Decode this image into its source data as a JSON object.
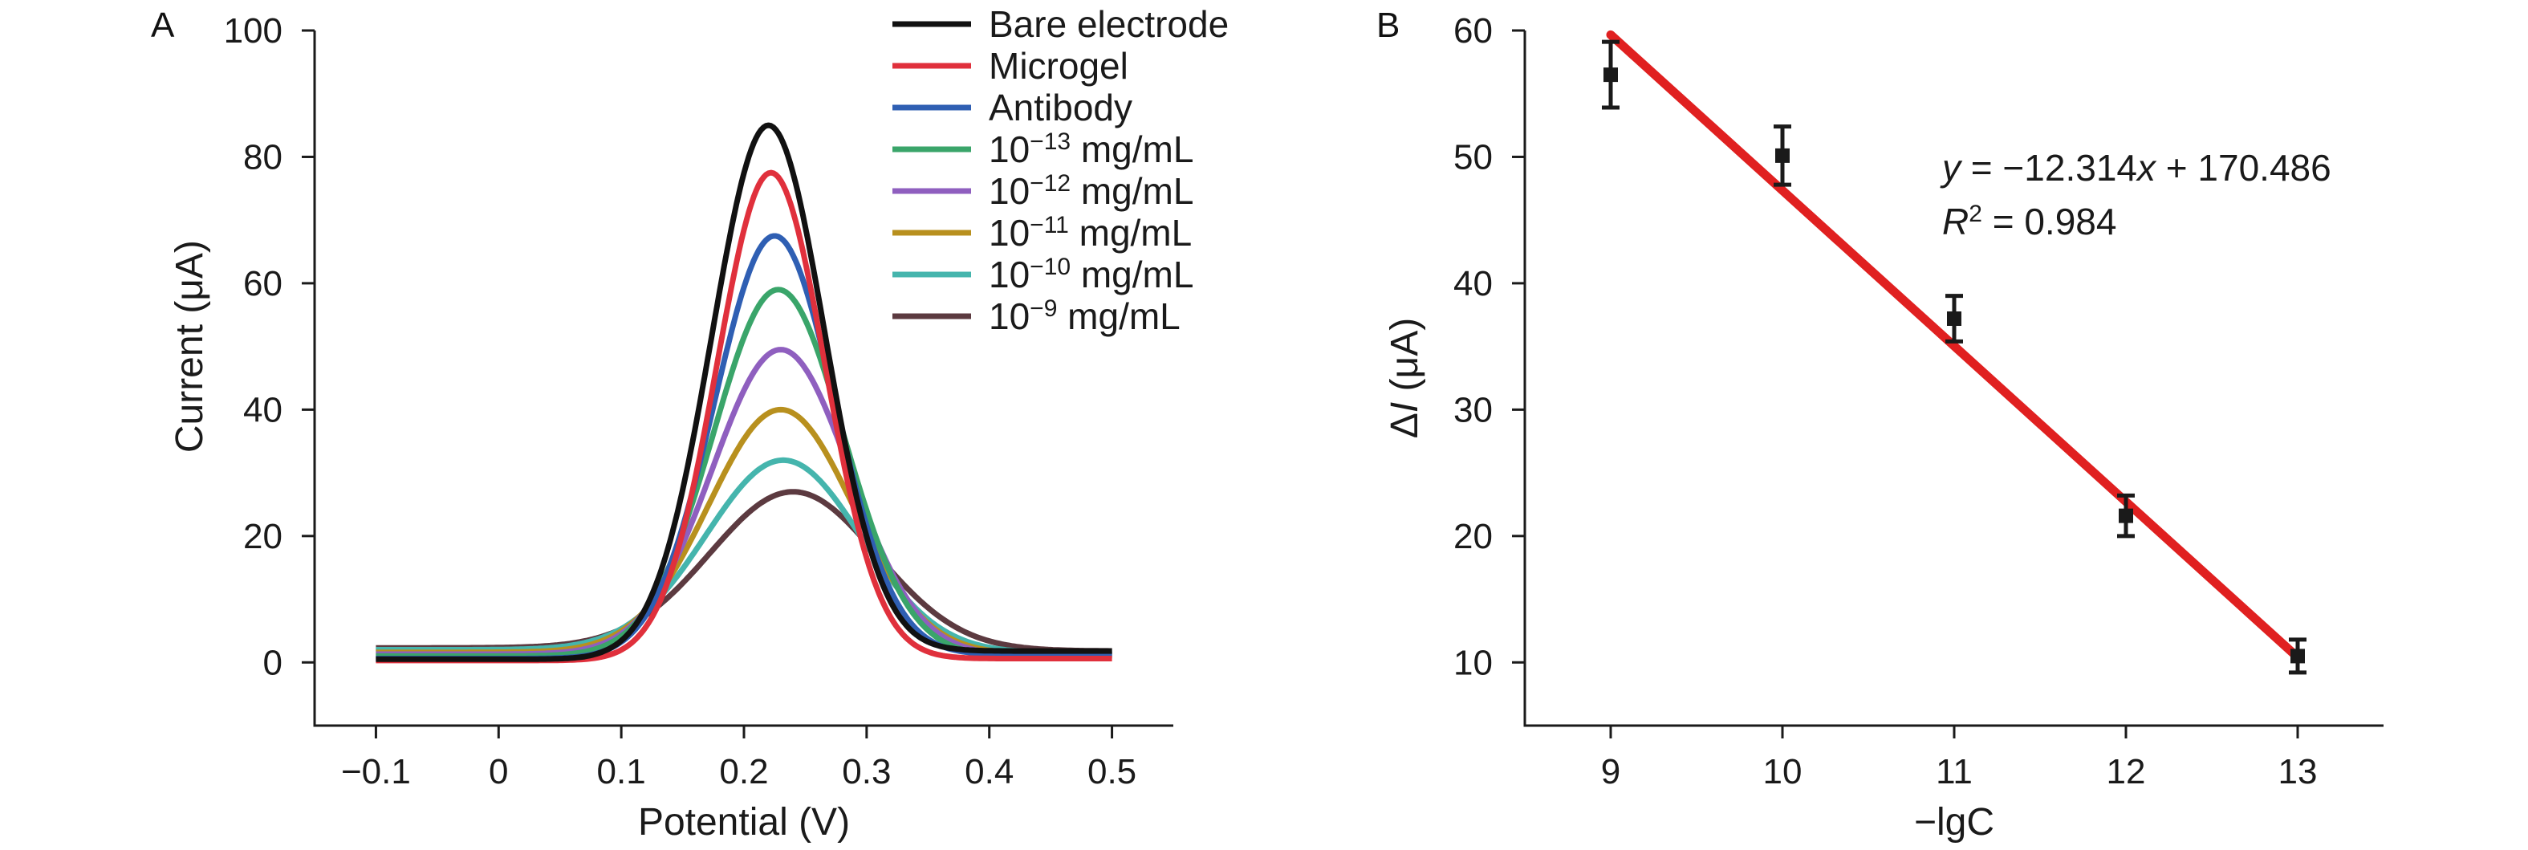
{
  "chart_data": [
    {
      "panel": "A",
      "type": "line",
      "xlabel": "Potential (V)",
      "ylabel": "Current (μA)",
      "xlim": [
        -0.15,
        0.55
      ],
      "ylim": [
        -10,
        100
      ],
      "x_ticks": [
        -0.1,
        0,
        0.1,
        0.2,
        0.3,
        0.4,
        0.5
      ],
      "x_tick_labels": [
        "−0.1",
        "0",
        "0.1",
        "0.2",
        "0.3",
        "0.4",
        "0.5"
      ],
      "y_ticks": [
        0,
        20,
        40,
        60,
        80,
        100
      ],
      "y_tick_labels": [
        "0",
        "20",
        "40",
        "60",
        "80",
        "100"
      ],
      "grid": false,
      "legend_position": "top-right",
      "series": [
        {
          "name": "Bare electrode",
          "base": "",
          "exp": "",
          "unit": "",
          "color": "#111111",
          "peak_x": 0.22,
          "peak_y": 85,
          "width": 0.046,
          "baseline_left": 0.5,
          "baseline_right": 1.8
        },
        {
          "name": "Microgel",
          "base": "",
          "exp": "",
          "unit": "",
          "color": "#e0303c",
          "peak_x": 0.222,
          "peak_y": 77.5,
          "width": 0.044,
          "baseline_left": 0.3,
          "baseline_right": 0.6
        },
        {
          "name": "Antibody",
          "base": "",
          "exp": "",
          "unit": "",
          "color": "#2f5fb3",
          "peak_x": 0.225,
          "peak_y": 67.5,
          "width": 0.049,
          "baseline_left": 0.6,
          "baseline_right": 1.2
        },
        {
          "name": "",
          "base": "10",
          "exp": "−13",
          "unit": " mg/mL",
          "color": "#3aa56a",
          "peak_x": 0.228,
          "peak_y": 59,
          "width": 0.053,
          "baseline_left": 1.0,
          "baseline_right": 1.0
        },
        {
          "name": "",
          "base": "10",
          "exp": "−12",
          "unit": " mg/mL",
          "color": "#8f5fbf",
          "peak_x": 0.23,
          "peak_y": 49.5,
          "width": 0.056,
          "baseline_left": 1.3,
          "baseline_right": 1.1
        },
        {
          "name": "",
          "base": "10",
          "exp": "−11",
          "unit": " mg/mL",
          "color": "#b8901e",
          "peak_x": 0.23,
          "peak_y": 40,
          "width": 0.059,
          "baseline_left": 1.6,
          "baseline_right": 1.3
        },
        {
          "name": "",
          "base": "10",
          "exp": "−10",
          "unit": " mg/mL",
          "color": "#45b5ad",
          "peak_x": 0.232,
          "peak_y": 32,
          "width": 0.063,
          "baseline_left": 2.0,
          "baseline_right": 1.5
        },
        {
          "name": "",
          "base": "10",
          "exp": "−9",
          "unit": " mg/mL",
          "color": "#5c3a40",
          "peak_x": 0.24,
          "peak_y": 27,
          "width": 0.068,
          "baseline_left": 2.3,
          "baseline_right": 1.8
        }
      ]
    },
    {
      "panel": "B",
      "type": "scatter",
      "xlabel": "−lgC",
      "ylabel_symbol": "Δ",
      "ylabel_italic": "I",
      "ylabel_unit": " (μA)",
      "xlim": [
        8.5,
        13.5
      ],
      "ylim": [
        5,
        60
      ],
      "x_ticks": [
        9,
        10,
        11,
        12,
        13
      ],
      "x_tick_labels": [
        "9",
        "10",
        "11",
        "12",
        "13"
      ],
      "y_ticks": [
        10,
        20,
        30,
        40,
        50,
        60
      ],
      "y_tick_labels": [
        "10",
        "20",
        "30",
        "40",
        "50",
        "60"
      ],
      "grid": false,
      "points": [
        {
          "x": 9,
          "y": 56.5,
          "err": 2.6
        },
        {
          "x": 10,
          "y": 50.1,
          "err": 2.3
        },
        {
          "x": 11,
          "y": 37.2,
          "err": 1.8
        },
        {
          "x": 12,
          "y": 21.6,
          "err": 1.6
        },
        {
          "x": 13,
          "y": 10.5,
          "err": 1.3
        }
      ],
      "marker_color": "#1a1a1a",
      "fit": {
        "slope": -12.314,
        "intercept": 170.486,
        "x_range": [
          9,
          13
        ],
        "color": "#e02020"
      },
      "equation_y_italic": "y",
      "equation_rhs": " = −12.314",
      "equation_x_italic": "x",
      "equation_tail": " + 170.486",
      "r2_italic": "R",
      "r2_sup": "2",
      "r2_value": " = 0.984"
    }
  ]
}
